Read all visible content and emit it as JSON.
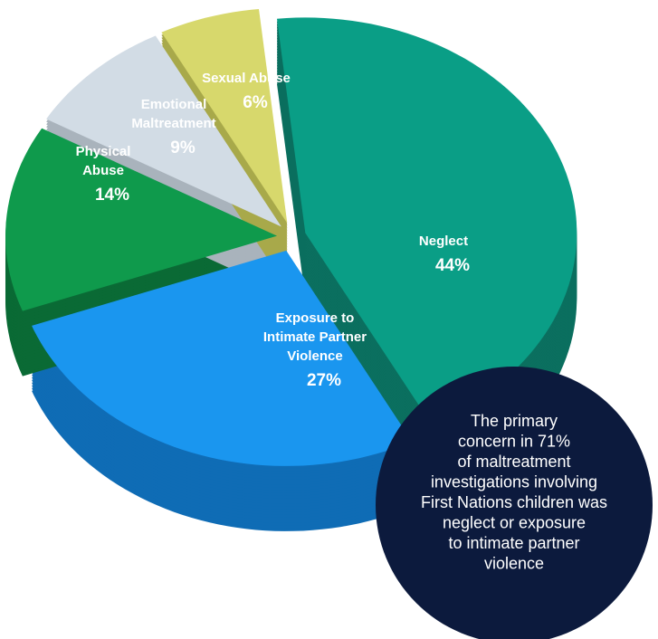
{
  "chart_data": {
    "type": "pie3d",
    "categories": [
      "Neglect",
      "Exposure to Intimate Partner Violence",
      "Physical Abuse",
      "Emotional Maltreatment",
      "Sexual Abuse"
    ],
    "values": [
      44,
      27,
      14,
      9,
      6
    ],
    "value_labels": [
      "44%",
      "27%",
      "14%",
      "9%",
      "6%"
    ],
    "colors": [
      "#0a9e86",
      "#1a96ef",
      "#0f9a4c",
      "#d2dce5",
      "#d7d86c"
    ],
    "side_colors": [
      "#0b6f5f",
      "#0f6cb5",
      "#0a6a35",
      "#a9b3bc",
      "#a8a94a"
    ],
    "annotation": [
      "The primary",
      "concern in 71%",
      "of maltreatment",
      "investigations involving",
      "First Nations children was",
      "neglect or exposure",
      "to intimate partner",
      "violence"
    ]
  }
}
